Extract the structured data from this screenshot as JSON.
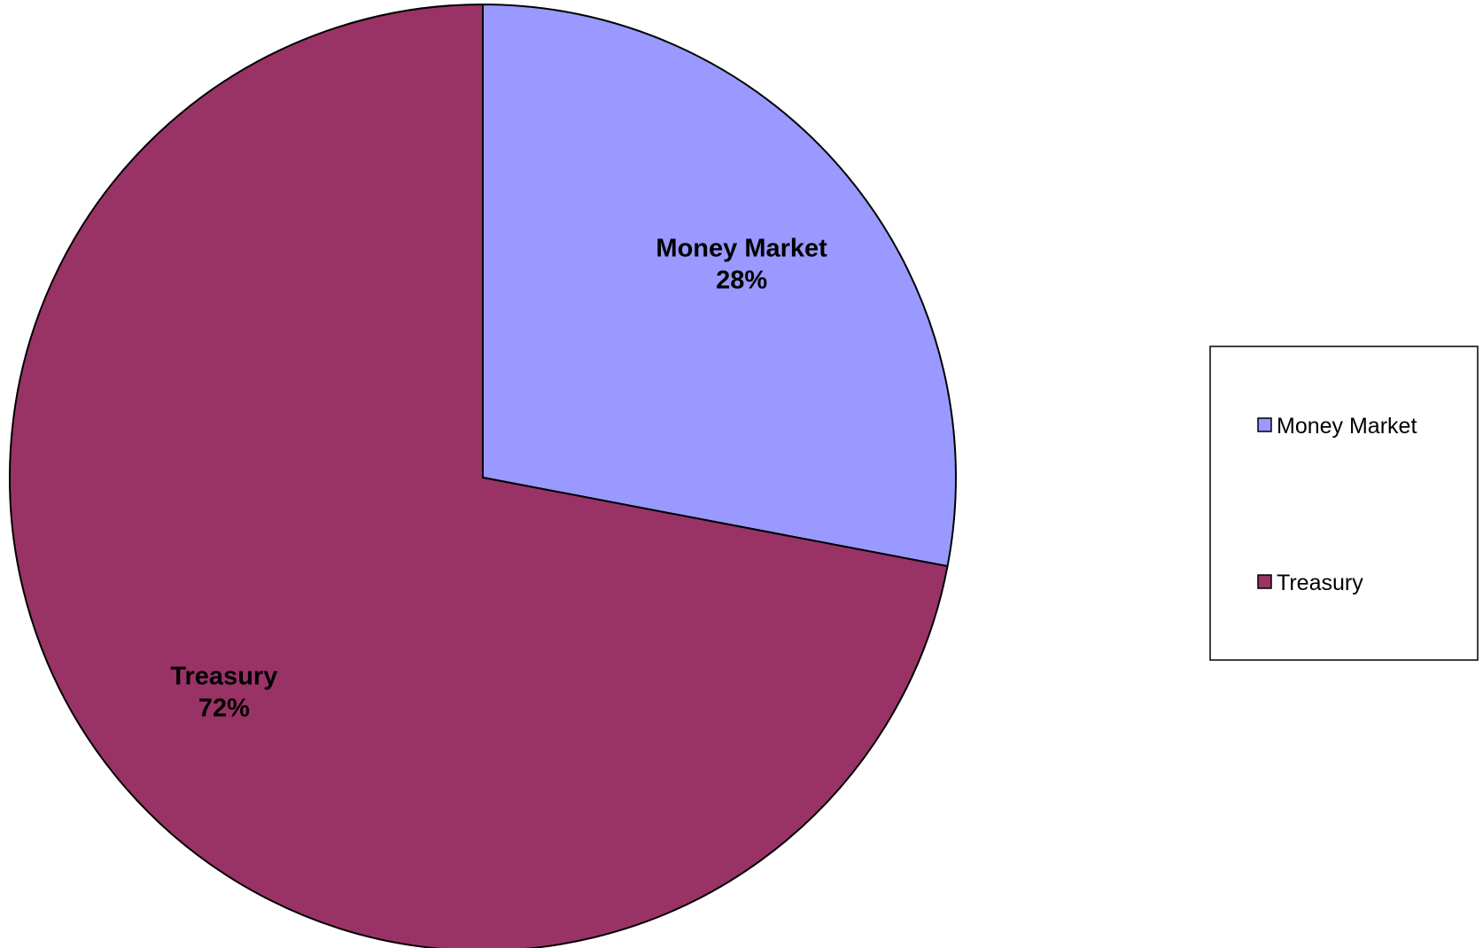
{
  "chart_data": {
    "type": "pie",
    "title": "",
    "start_angle_deg": 0,
    "direction": "clockwise",
    "slices": [
      {
        "name": "Money Market",
        "value": 28,
        "percent_label": "28%",
        "color": "#9999ff"
      },
      {
        "name": "Treasury",
        "value": 72,
        "percent_label": "72%",
        "color": "#993366"
      }
    ],
    "legend": {
      "position": "right",
      "items": [
        {
          "label": "Money Market",
          "color": "#9999ff"
        },
        {
          "label": "Treasury",
          "color": "#993366"
        }
      ]
    },
    "border_color": "#000000"
  }
}
